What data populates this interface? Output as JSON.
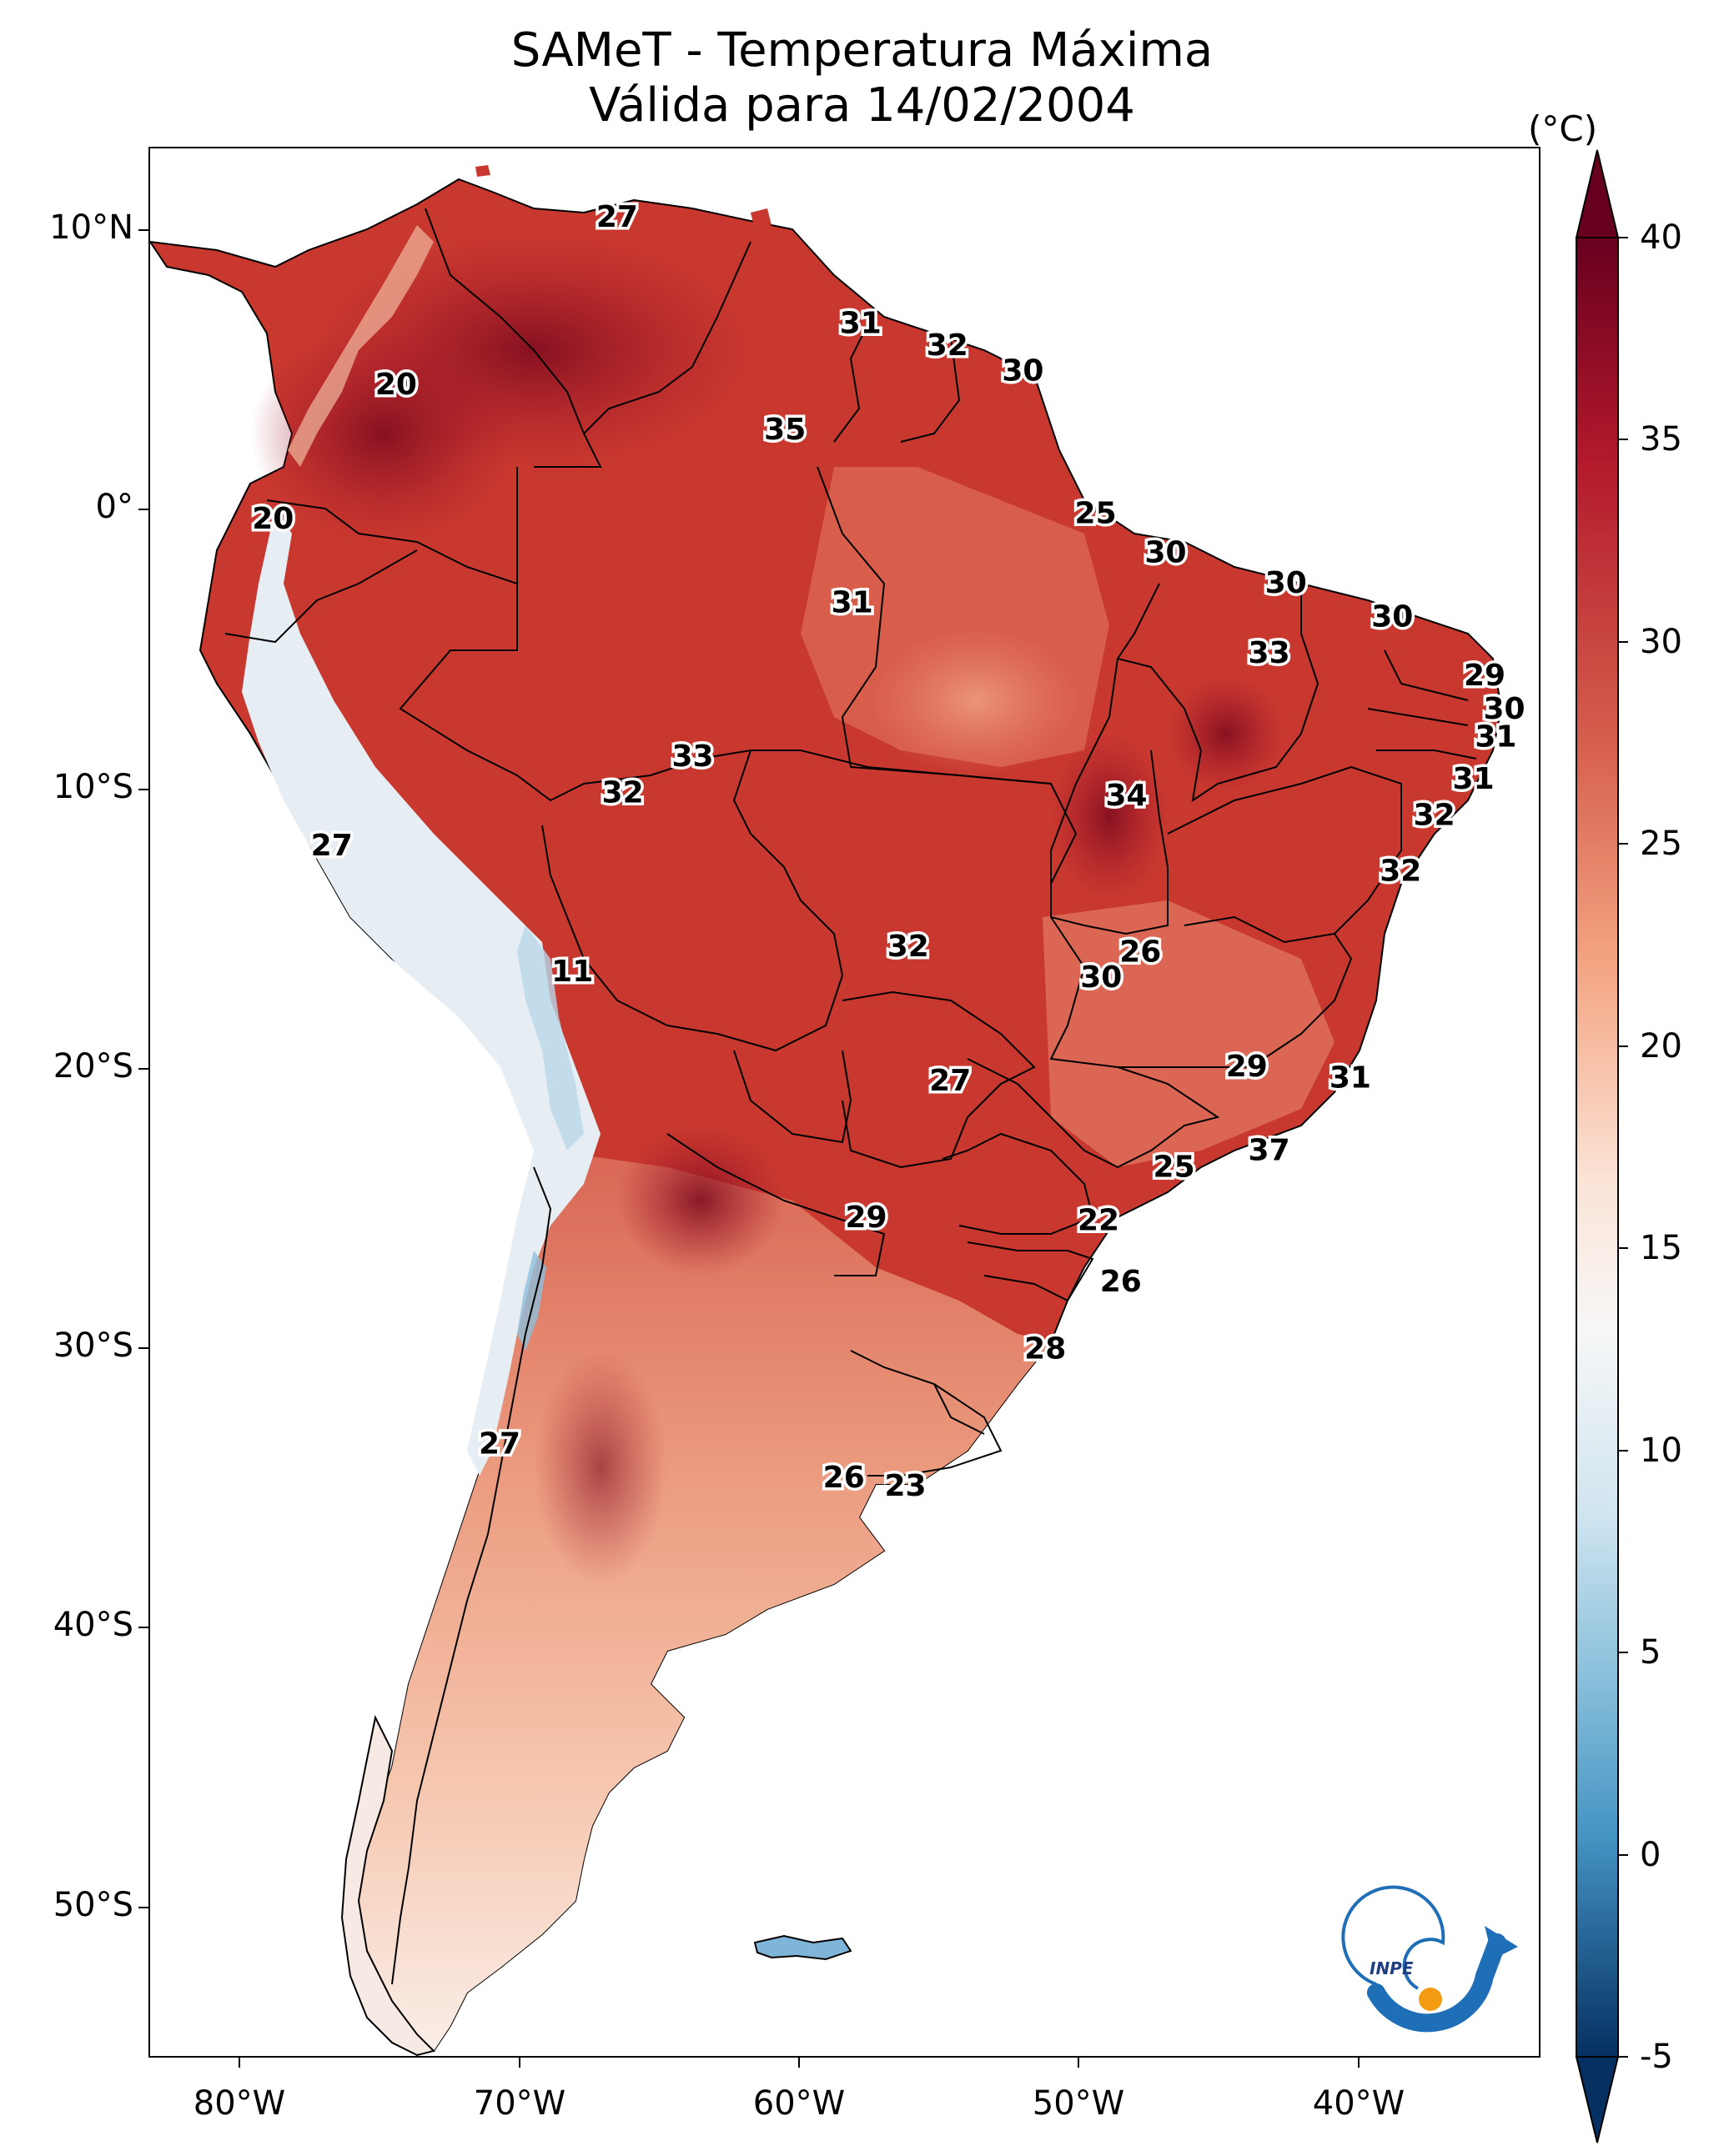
{
  "title": {
    "line1": "SAMeT - Temperatura Máxima",
    "line2": "Válida para 14/02/2004"
  },
  "axes": {
    "lat_labels": [
      "10°N",
      "0°",
      "10°S",
      "20°S",
      "30°S",
      "40°S",
      "50°S"
    ],
    "lon_labels": [
      "80°W",
      "70°W",
      "60°W",
      "50°W",
      "40°W"
    ]
  },
  "colorbar": {
    "unit": "(°C)",
    "ticks": [
      "40",
      "35",
      "30",
      "25",
      "20",
      "15",
      "10",
      "5",
      "0",
      "-5"
    ],
    "range": [
      -5,
      40
    ],
    "colors": {
      "top": "#67001f",
      "high": "#b2182b",
      "warm": "#d6604d",
      "mild": "#f4a582",
      "neutral": "#f7f7f7",
      "cool": "#92c5de",
      "cold": "#4393c3",
      "bottom": "#053061"
    }
  },
  "station_labels": [
    {
      "value": "27",
      "lon": -66.5,
      "lat": 10.5
    },
    {
      "value": "31",
      "lon": -57.8,
      "lat": 6.7
    },
    {
      "value": "32",
      "lon": -54.7,
      "lat": 5.9
    },
    {
      "value": "30",
      "lon": -52.0,
      "lat": 5.0
    },
    {
      "value": "20",
      "lon": -74.4,
      "lat": 4.5
    },
    {
      "value": "35",
      "lon": -60.5,
      "lat": 2.9
    },
    {
      "value": "20",
      "lon": -78.8,
      "lat": -0.3
    },
    {
      "value": "25",
      "lon": -49.4,
      "lat": -0.1
    },
    {
      "value": "30",
      "lon": -46.9,
      "lat": -1.5
    },
    {
      "value": "30",
      "lon": -42.6,
      "lat": -2.6
    },
    {
      "value": "31",
      "lon": -58.1,
      "lat": -3.3
    },
    {
      "value": "30",
      "lon": -38.8,
      "lat": -3.8
    },
    {
      "value": "33",
      "lon": -43.2,
      "lat": -5.1
    },
    {
      "value": "29",
      "lon": -35.5,
      "lat": -5.9
    },
    {
      "value": "30",
      "lon": -34.8,
      "lat": -7.1
    },
    {
      "value": "31",
      "lon": -35.1,
      "lat": -8.1
    },
    {
      "value": "33",
      "lon": -63.8,
      "lat": -8.8
    },
    {
      "value": "31",
      "lon": -35.9,
      "lat": -9.6
    },
    {
      "value": "32",
      "lon": -66.3,
      "lat": -10.1
    },
    {
      "value": "34",
      "lon": -48.3,
      "lat": -10.2
    },
    {
      "value": "32",
      "lon": -37.3,
      "lat": -10.9
    },
    {
      "value": "27",
      "lon": -76.7,
      "lat": -12.0
    },
    {
      "value": "32",
      "lon": -38.5,
      "lat": -12.9
    },
    {
      "value": "32",
      "lon": -56.1,
      "lat": -15.6
    },
    {
      "value": "26",
      "lon": -47.8,
      "lat": -15.8
    },
    {
      "value": "11",
      "lon": -68.1,
      "lat": -16.5
    },
    {
      "value": "30",
      "lon": -49.2,
      "lat": -16.7
    },
    {
      "value": "29",
      "lon": -44.0,
      "lat": -19.9
    },
    {
      "value": "27",
      "lon": -54.6,
      "lat": -20.4
    },
    {
      "value": "31",
      "lon": -40.3,
      "lat": -20.3
    },
    {
      "value": "37",
      "lon": -43.2,
      "lat": -22.9
    },
    {
      "value": "25",
      "lon": -46.6,
      "lat": -23.5
    },
    {
      "value": "29",
      "lon": -57.6,
      "lat": -25.3
    },
    {
      "value": "22",
      "lon": -49.3,
      "lat": -25.4
    },
    {
      "value": "26",
      "lon": -48.5,
      "lat": -27.6
    },
    {
      "value": "28",
      "lon": -51.2,
      "lat": -30.0
    },
    {
      "value": "27",
      "lon": -70.7,
      "lat": -33.4
    },
    {
      "value": "26",
      "lon": -58.4,
      "lat": -34.6
    },
    {
      "value": "23",
      "lon": -56.2,
      "lat": -34.9
    }
  ],
  "logo_text": "INPE"
}
